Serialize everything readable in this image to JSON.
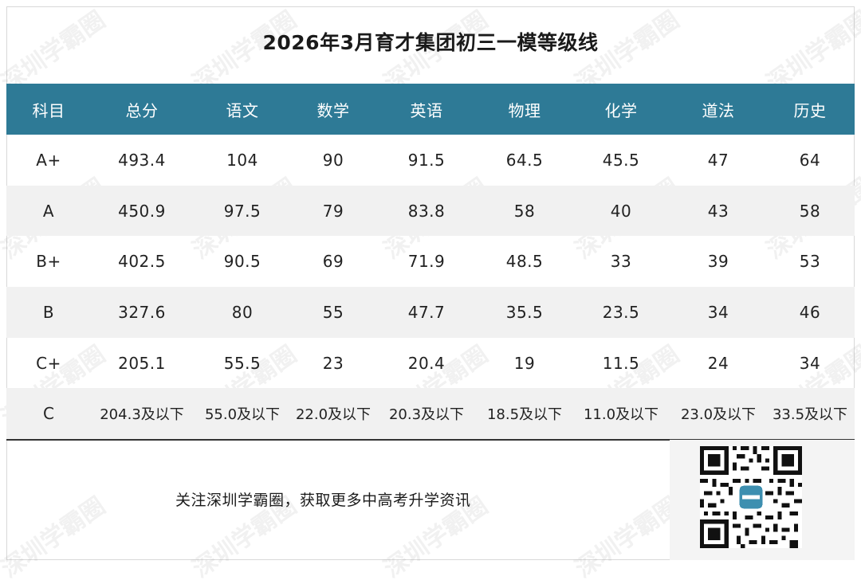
{
  "title": "2026年3月育才集团初三一模等级线",
  "headers": [
    "科目",
    "总分",
    "语文",
    "数学",
    "英语",
    "物理",
    "化学",
    "道法",
    "历史"
  ],
  "rows": [
    [
      "A+",
      "493.4",
      "104",
      "90",
      "91.5",
      "64.5",
      "45.5",
      "47",
      "64"
    ],
    [
      "A",
      "450.9",
      "97.5",
      "79",
      "83.8",
      "58",
      "40",
      "43",
      "58"
    ],
    [
      "B+",
      "402.5",
      "90.5",
      "69",
      "71.9",
      "48.5",
      "33",
      "39",
      "53"
    ],
    [
      "B",
      "327.6",
      "80",
      "55",
      "47.7",
      "35.5",
      "23.5",
      "34",
      "46"
    ],
    [
      "C+",
      "205.1",
      "55.5",
      "23",
      "20.4",
      "19",
      "11.5",
      "24",
      "34"
    ],
    [
      "C",
      "204.3及以下",
      "55.0及以下",
      "22.0及以下",
      "20.3及以下",
      "18.5及以下",
      "11.0及以下",
      "23.0及以下",
      "33.5及以下"
    ]
  ],
  "footer": "关注深圳学霸圈，获取更多中高考升学资讯",
  "watermark": "深圳学霸圈",
  "colors": {
    "header_bg": "#2e7a96",
    "row_shade": "#f1f1f1"
  }
}
